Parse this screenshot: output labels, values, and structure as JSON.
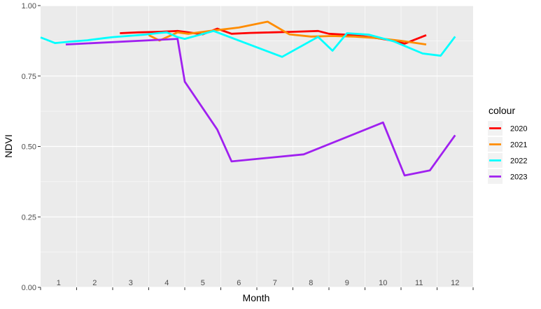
{
  "chart_data": {
    "type": "line",
    "xlabel": "Month",
    "ylabel": "NDVI",
    "xlim": [
      0.5,
      12.5
    ],
    "ylim": [
      0,
      1
    ],
    "month_labels": [
      "1",
      "2",
      "3",
      "4",
      "5",
      "6",
      "7",
      "8",
      "9",
      "10",
      "11",
      "12"
    ],
    "y_ticks": [
      {
        "value": 0,
        "label": "0.00"
      },
      {
        "value": 0.25,
        "label": "0.25"
      },
      {
        "value": 0.5,
        "label": "0.50"
      },
      {
        "value": 0.75,
        "label": "0.75"
      },
      {
        "value": 1,
        "label": "1.00"
      }
    ],
    "grid": true,
    "legend": {
      "title": "colour",
      "position": "right"
    },
    "series": [
      {
        "name": "2020",
        "color": "#ff0000",
        "x": [
          2.7,
          3.2,
          3.8,
          4.3,
          4.6,
          5.0,
          5.4,
          5.8,
          6.3,
          6.9,
          7.5,
          8.2,
          8.5,
          9.2,
          9.8,
          10.3,
          10.6,
          11.2
        ],
        "y": [
          0.902,
          0.905,
          0.907,
          0.91,
          0.905,
          0.898,
          0.918,
          0.9,
          0.903,
          0.905,
          0.907,
          0.91,
          0.9,
          0.895,
          0.885,
          0.875,
          0.865,
          0.895
        ]
      },
      {
        "name": "2021",
        "color": "#ff8c00",
        "x": [
          3.5,
          3.8,
          4.3,
          4.6,
          5.2,
          6.0,
          6.8,
          7.4,
          8.0,
          8.6,
          9.2,
          9.8,
          10.5,
          11.2
        ],
        "y": [
          0.895,
          0.876,
          0.905,
          0.9,
          0.91,
          0.922,
          0.943,
          0.898,
          0.89,
          0.892,
          0.89,
          0.885,
          0.875,
          0.862
        ]
      },
      {
        "name": "2022",
        "color": "#00ffff",
        "x": [
          0.5,
          0.9,
          1.3,
          1.8,
          2.3,
          2.5,
          3.0,
          3.4,
          3.8,
          4.0,
          4.3,
          4.5,
          5.3,
          7.2,
          8.2,
          8.6,
          9.0,
          9.6,
          10.3,
          11.1,
          11.6,
          12.0
        ],
        "y": [
          0.887,
          0.867,
          0.872,
          0.877,
          0.885,
          0.888,
          0.893,
          0.897,
          0.903,
          0.905,
          0.888,
          0.882,
          0.91,
          0.818,
          0.889,
          0.84,
          0.902,
          0.897,
          0.873,
          0.83,
          0.822,
          0.89
        ]
      },
      {
        "name": "2023",
        "color": "#a020f0",
        "x": [
          1.2,
          4.3,
          4.5,
          5.4,
          5.8,
          7.8,
          10.0,
          10.6,
          11.3,
          12.0
        ],
        "y": [
          0.862,
          0.882,
          0.73,
          0.56,
          0.447,
          0.472,
          0.585,
          0.397,
          0.415,
          0.54
        ]
      }
    ]
  }
}
